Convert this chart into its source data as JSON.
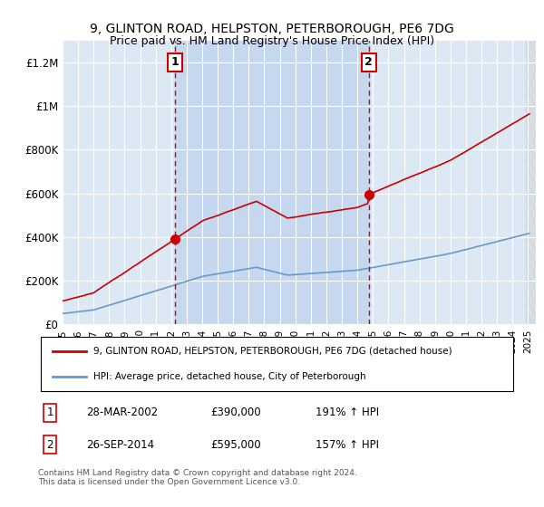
{
  "title": "9, GLINTON ROAD, HELPSTON, PETERBOROUGH, PE6 7DG",
  "subtitle": "Price paid vs. HM Land Registry's House Price Index (HPI)",
  "legend_line1": "9, GLINTON ROAD, HELPSTON, PETERBOROUGH, PE6 7DG (detached house)",
  "legend_line2": "HPI: Average price, detached house, City of Peterborough",
  "annotation1_label": "1",
  "annotation1_date": "28-MAR-2002",
  "annotation1_price": "£390,000",
  "annotation1_hpi": "191% ↑ HPI",
  "annotation2_label": "2",
  "annotation2_date": "26-SEP-2014",
  "annotation2_price": "£595,000",
  "annotation2_hpi": "157% ↑ HPI",
  "footnote": "Contains HM Land Registry data © Crown copyright and database right 2024.\nThis data is licensed under the Open Government Licence v3.0.",
  "sale1_year": 2002.23,
  "sale1_price": 390000,
  "sale2_year": 2014.73,
  "sale2_price": 595000,
  "xlim": [
    1995,
    2025.5
  ],
  "ylim": [
    0,
    1300000
  ],
  "yticks": [
    0,
    200000,
    400000,
    600000,
    800000,
    1000000,
    1200000
  ],
  "ytick_labels": [
    "£0",
    "£200K",
    "£400K",
    "£600K",
    "£800K",
    "£1M",
    "£1.2M"
  ],
  "xticks": [
    1995,
    1996,
    1997,
    1998,
    1999,
    2000,
    2001,
    2002,
    2003,
    2004,
    2005,
    2006,
    2007,
    2008,
    2009,
    2010,
    2011,
    2012,
    2013,
    2014,
    2015,
    2016,
    2017,
    2018,
    2019,
    2020,
    2021,
    2022,
    2023,
    2024,
    2025
  ],
  "property_color": "#cc0000",
  "hpi_color": "#6699cc",
  "background_color": "#dce9f5",
  "plot_bg_color": "#dce9f5",
  "grid_color": "#ffffff",
  "vline_color": "#cc0000",
  "box_color": "#cc0000",
  "shade_color": "#c5d8ef"
}
